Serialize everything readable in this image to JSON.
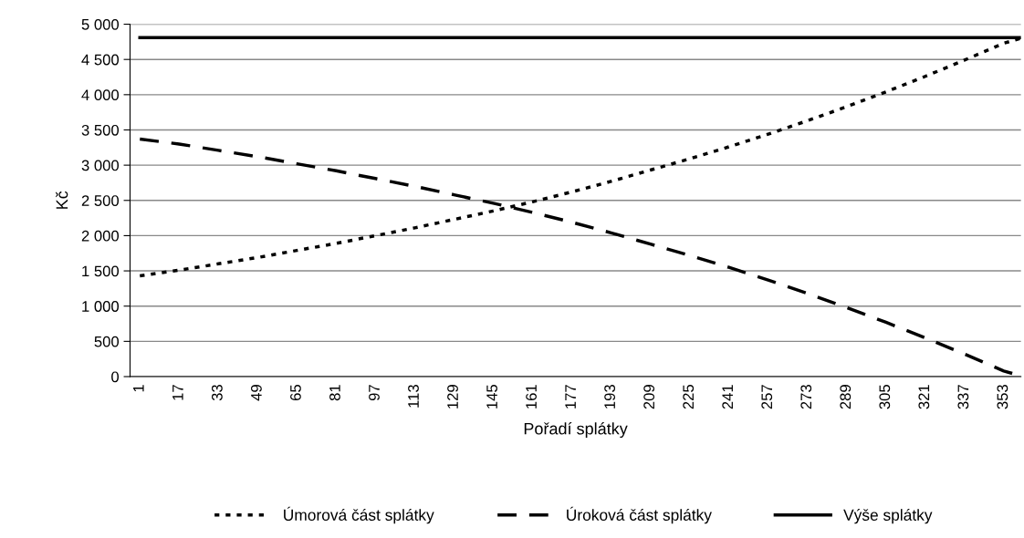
{
  "chart_data": {
    "type": "line",
    "xlabel": "Pořadí splátky",
    "ylabel": "Kč",
    "x": [
      1,
      17,
      33,
      49,
      65,
      81,
      97,
      113,
      129,
      145,
      161,
      177,
      193,
      209,
      225,
      241,
      257,
      273,
      289,
      305,
      321,
      337,
      353,
      360
    ],
    "series": [
      {
        "name": "Úmorová část splátky",
        "color": "#000000",
        "line_style": "dotted",
        "values": [
          1430,
          1510,
          1600,
          1690,
          1790,
          1890,
          2000,
          2110,
          2230,
          2350,
          2480,
          2620,
          2770,
          2930,
          3090,
          3260,
          3440,
          3630,
          3830,
          4040,
          4260,
          4490,
          4730,
          4800
        ]
      },
      {
        "name": "Úroková část splátky",
        "color": "#000000",
        "line_style": "dashed",
        "values": [
          3370,
          3300,
          3210,
          3120,
          3020,
          2920,
          2810,
          2700,
          2580,
          2460,
          2330,
          2190,
          2040,
          1880,
          1720,
          1550,
          1370,
          1180,
          980,
          770,
          550,
          320,
          80,
          10
        ]
      },
      {
        "name": "Výše splátky",
        "color": "#000000",
        "line_style": "solid",
        "values": [
          4810,
          4810,
          4810,
          4810,
          4810,
          4810,
          4810,
          4810,
          4810,
          4810,
          4810,
          4810,
          4810,
          4810,
          4810,
          4810,
          4810,
          4810,
          4810,
          4810,
          4810,
          4810,
          4810,
          4810
        ]
      }
    ],
    "xlim": [
      -3,
      360
    ],
    "xticks": [
      1,
      17,
      33,
      49,
      65,
      81,
      97,
      113,
      129,
      145,
      161,
      177,
      193,
      209,
      225,
      241,
      257,
      273,
      289,
      305,
      321,
      337,
      353
    ],
    "ylim": [
      0,
      5000
    ],
    "yticks": [
      {
        "value": 0,
        "label": "0"
      },
      {
        "value": 500,
        "label": "500"
      },
      {
        "value": 1000,
        "label": "1 000"
      },
      {
        "value": 1500,
        "label": "1 500"
      },
      {
        "value": 2000,
        "label": "2 000"
      },
      {
        "value": 2500,
        "label": "2 500"
      },
      {
        "value": 3000,
        "label": "3 000"
      },
      {
        "value": 3500,
        "label": "3 500"
      },
      {
        "value": 4000,
        "label": "4 000"
      },
      {
        "value": 4500,
        "label": "4 500"
      },
      {
        "value": 5000,
        "label": "5 000"
      }
    ],
    "grid": "y",
    "legend": "bottom",
    "marker": "none"
  }
}
